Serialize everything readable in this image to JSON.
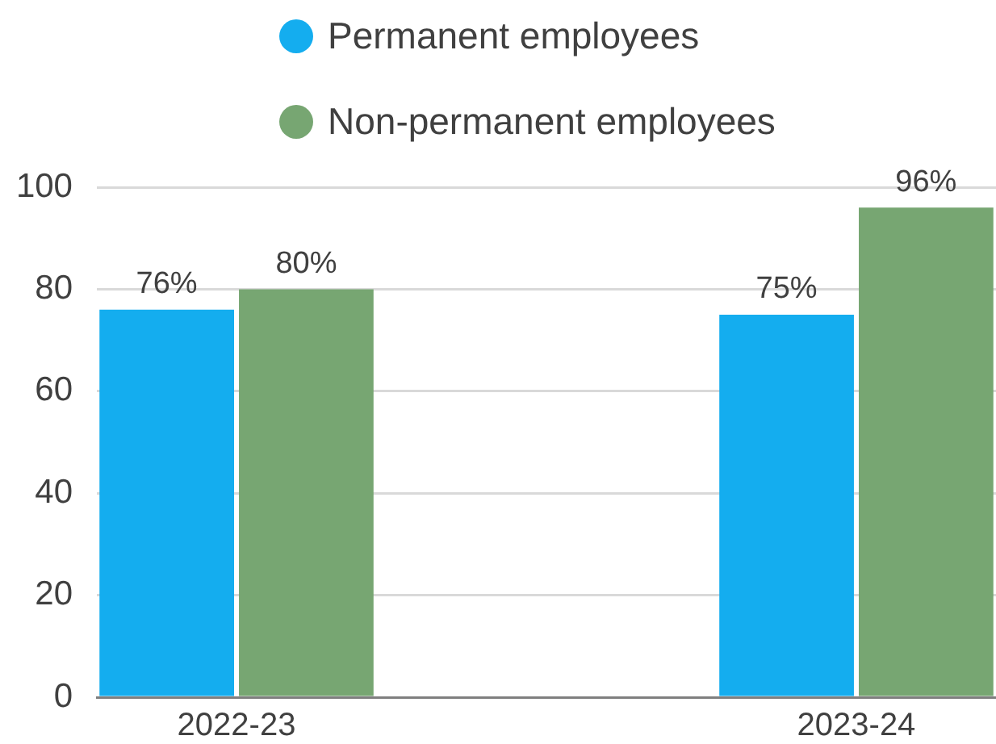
{
  "chart_data": {
    "type": "bar",
    "categories": [
      "2022-23",
      "2023-24"
    ],
    "series": [
      {
        "name": "Permanent employees",
        "color": "#14adef",
        "values": [
          76,
          75
        ],
        "value_labels": [
          "76%",
          "75%"
        ]
      },
      {
        "name": "Non-permanent employees",
        "color": "#77a672",
        "values": [
          80,
          96
        ],
        "value_labels": [
          "80%",
          "96%"
        ]
      }
    ],
    "ylim": [
      0,
      100
    ],
    "yticks": [
      0,
      20,
      40,
      60,
      80,
      100
    ],
    "grid": "y",
    "legend": "top"
  }
}
